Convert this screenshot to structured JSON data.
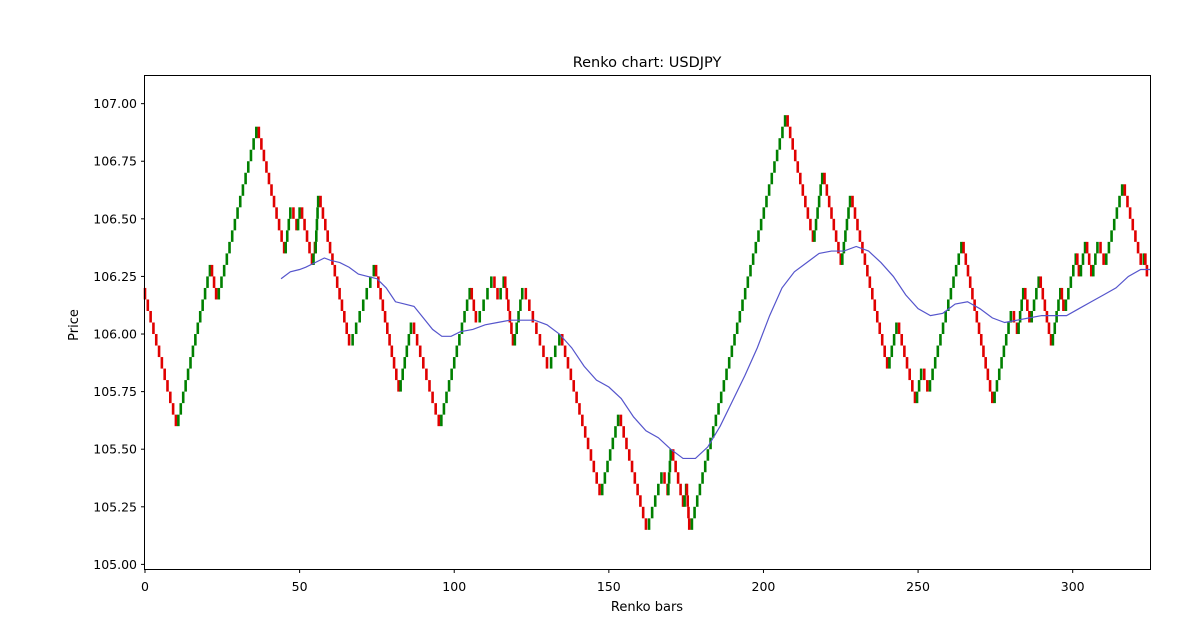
{
  "chart_data": {
    "type": "renko",
    "title": "Renko chart: USDJPY",
    "xlabel": "Renko bars",
    "ylabel": "Price",
    "xlim": [
      0,
      325
    ],
    "ylim": [
      104.98,
      107.12
    ],
    "xticks": [
      0,
      50,
      100,
      150,
      200,
      250,
      300
    ],
    "yticks": [
      105.0,
      105.25,
      105.5,
      105.75,
      106.0,
      106.25,
      106.5,
      106.75,
      107.0
    ],
    "yticks_format": 2,
    "grid": false,
    "brick_size": 0.05,
    "start_price": 106.2,
    "colors": {
      "up": "#008000",
      "down": "#e00000",
      "ma": "#5555cc"
    },
    "pivots": [
      [
        0,
        106.2
      ],
      [
        10,
        105.6
      ],
      [
        21,
        106.3
      ],
      [
        23,
        106.15
      ],
      [
        36,
        106.9
      ],
      [
        45,
        106.35
      ],
      [
        47,
        106.55
      ],
      [
        49,
        106.45
      ],
      [
        50,
        106.55
      ],
      [
        54,
        106.3
      ],
      [
        55,
        106.4
      ],
      [
        55,
        106.35
      ],
      [
        56,
        106.6
      ],
      [
        66,
        105.95
      ],
      [
        74,
        106.3
      ],
      [
        82,
        105.75
      ],
      [
        86,
        106.05
      ],
      [
        95,
        105.6
      ],
      [
        105,
        106.2
      ],
      [
        107,
        106.05
      ],
      [
        112,
        106.25
      ],
      [
        114,
        106.15
      ],
      [
        116,
        106.25
      ],
      [
        119,
        105.95
      ],
      [
        122,
        106.2
      ],
      [
        130,
        105.85
      ],
      [
        134,
        106.0
      ],
      [
        147,
        105.3
      ],
      [
        153,
        105.65
      ],
      [
        162,
        105.15
      ],
      [
        167,
        105.4
      ],
      [
        169,
        105.3
      ],
      [
        170,
        105.5
      ],
      [
        174,
        105.25
      ],
      [
        175,
        105.35
      ],
      [
        176,
        105.15
      ],
      [
        207,
        106.95
      ],
      [
        216,
        106.4
      ],
      [
        219,
        106.7
      ],
      [
        225,
        106.3
      ],
      [
        228,
        106.6
      ],
      [
        240,
        105.85
      ],
      [
        243,
        106.05
      ],
      [
        249,
        105.7
      ],
      [
        251,
        105.85
      ],
      [
        253,
        105.75
      ],
      [
        264,
        106.4
      ],
      [
        274,
        105.7
      ],
      [
        280,
        106.1
      ],
      [
        282,
        106.0
      ],
      [
        284,
        106.2
      ],
      [
        286,
        106.05
      ],
      [
        289,
        106.25
      ],
      [
        293,
        105.95
      ],
      [
        296,
        106.2
      ],
      [
        297,
        106.1
      ],
      [
        301,
        106.35
      ],
      [
        302,
        106.25
      ],
      [
        304,
        106.4
      ],
      [
        306,
        106.25
      ],
      [
        308,
        106.4
      ],
      [
        310,
        106.3
      ],
      [
        316,
        106.65
      ],
      [
        322,
        106.3
      ],
      [
        323,
        106.35
      ],
      [
        324,
        106.25
      ]
    ],
    "moving_average": {
      "x": [
        44,
        47,
        50,
        52,
        55,
        58,
        60,
        63,
        66,
        69,
        72,
        75,
        78,
        81,
        84,
        87,
        90,
        93,
        96,
        99,
        102,
        106,
        110,
        114,
        118,
        122,
        126,
        130,
        134,
        138,
        142,
        146,
        150,
        154,
        158,
        162,
        166,
        170,
        174,
        178,
        182,
        186,
        190,
        194,
        198,
        202,
        206,
        210,
        214,
        218,
        222,
        226,
        230,
        234,
        238,
        242,
        246,
        250,
        254,
        258,
        262,
        266,
        270,
        274,
        278,
        282,
        286,
        290,
        294,
        298,
        302,
        306,
        310,
        314,
        318,
        322,
        325
      ],
      "y": [
        106.24,
        106.27,
        106.28,
        106.29,
        106.31,
        106.33,
        106.32,
        106.31,
        106.29,
        106.26,
        106.25,
        106.24,
        106.2,
        106.14,
        106.13,
        106.12,
        106.07,
        106.02,
        105.99,
        105.99,
        106.01,
        106.02,
        106.04,
        106.05,
        106.06,
        106.06,
        106.06,
        106.04,
        106.0,
        105.94,
        105.86,
        105.8,
        105.77,
        105.72,
        105.64,
        105.58,
        105.55,
        105.5,
        105.46,
        105.46,
        105.51,
        105.6,
        105.71,
        105.82,
        105.94,
        106.08,
        106.2,
        106.27,
        106.31,
        106.35,
        106.36,
        106.36,
        106.38,
        106.36,
        106.31,
        106.25,
        106.17,
        106.11,
        106.08,
        106.09,
        106.13,
        106.14,
        106.11,
        106.07,
        106.05,
        106.06,
        106.07,
        106.08,
        106.08,
        106.08,
        106.11,
        106.14,
        106.17,
        106.2,
        106.25,
        106.28,
        106.28
      ]
    }
  }
}
